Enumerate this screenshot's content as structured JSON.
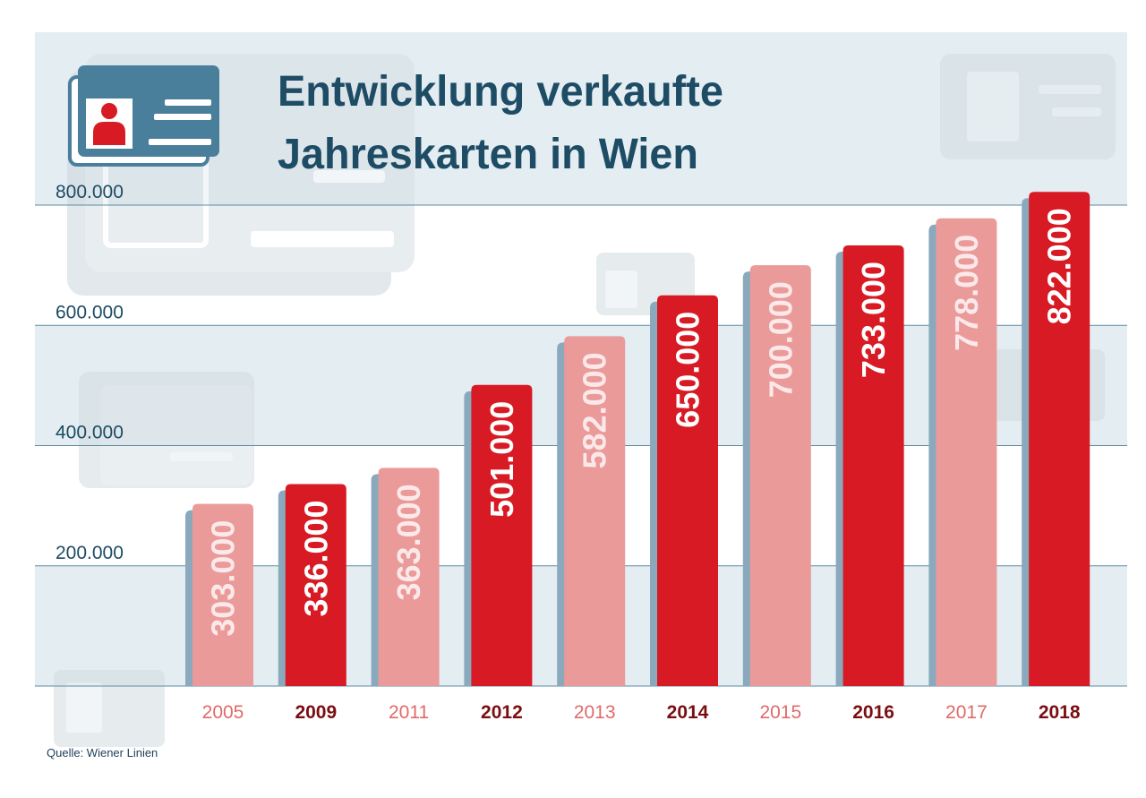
{
  "title_lines": [
    "Entwicklung verkaufte",
    "Jahreskarten in Wien"
  ],
  "source": "Quelle: Wiener Linien",
  "colors": {
    "panel_bg": "#e3edf2",
    "band_white": "#ffffff",
    "grid": "#5e8ca6",
    "title": "#1d4c64",
    "axis_label": "#1d4c64",
    "bar_dark": "#d81a24",
    "bar_light": "#eb9a9a",
    "bar_shadow": "#8aa9bc",
    "year_dark": "#7a0e12",
    "year_light": "#e06a6a",
    "card_icon": "#4a7f9c",
    "person_icon": "#d81a24",
    "watermark": "#d2dbe0"
  },
  "icons": [
    "id-card-icon",
    "person-icon"
  ],
  "chart_data": {
    "type": "bar",
    "categories": [
      "2005",
      "2009",
      "2011",
      "2012",
      "2013",
      "2014",
      "2015",
      "2016",
      "2017",
      "2018"
    ],
    "values": [
      303000,
      336000,
      363000,
      501000,
      582000,
      650000,
      700000,
      733000,
      778000,
      822000
    ],
    "value_labels": [
      "303.000",
      "336.000",
      "363.000",
      "501.000",
      "582.000",
      "650.000",
      "700.000",
      "733.000",
      "778.000",
      "822.000"
    ],
    "highlight": [
      "light",
      "dark",
      "light",
      "dark",
      "light",
      "dark",
      "light",
      "dark",
      "light",
      "dark"
    ],
    "yticks": [
      200000,
      400000,
      600000,
      800000
    ],
    "ytick_labels": [
      "200.000",
      "400.000",
      "600.000",
      "800.000"
    ],
    "ylim": [
      0,
      800000
    ],
    "grid": true,
    "legend": "none"
  }
}
